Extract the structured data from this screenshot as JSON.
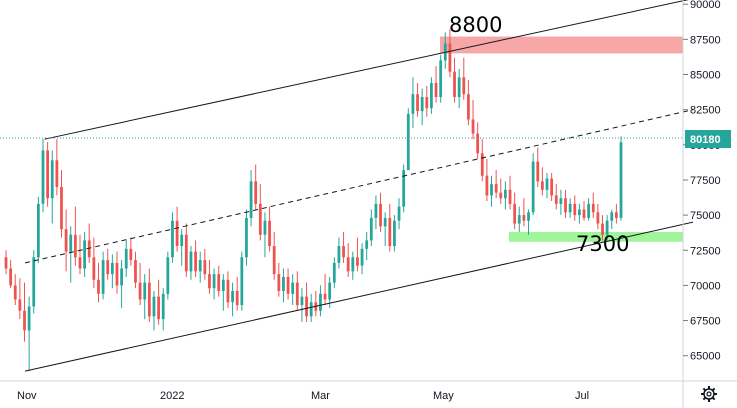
{
  "chart_data": {
    "type": "candlestick",
    "y_axis": {
      "ticks": [
        "65000",
        "67500",
        "70000",
        "72500",
        "75000",
        "77500",
        "80000",
        "82500",
        "85000",
        "87500",
        "90000"
      ],
      "ylim": [
        63200,
        90300
      ]
    },
    "x_axis": {
      "ticks": [
        "Nov",
        "2022",
        "Mar",
        "May",
        "Jul"
      ]
    },
    "last_price": "80180",
    "annotations": [
      "8800",
      "7300"
    ],
    "zones": [
      {
        "kind": "resistance",
        "color": "#f7a7a7",
        "price_low": 86500,
        "price_high": 87700
      },
      {
        "kind": "support",
        "color": "#9ff59a",
        "price_low": 73100,
        "price_high": 73800
      }
    ],
    "channel_lines": [
      {
        "style": "solid",
        "from": [
          "2021-10-31",
          63900
        ],
        "to": [
          "2022-08-01",
          74500
        ]
      },
      {
        "style": "dashed",
        "from": [
          "2021-10-31",
          71600
        ],
        "to": [
          "2022-08-01",
          82500
        ]
      },
      {
        "style": "solid",
        "from": [
          "2021-11-08",
          80400
        ],
        "to": [
          "2022-08-01",
          90400
        ]
      }
    ],
    "series": [
      {
        "values": [
          [
            72000,
            72500,
            70800,
            71200
          ],
          [
            71200,
            71800,
            69800,
            70000
          ],
          [
            70000,
            70800,
            68600,
            69000
          ],
          [
            69000,
            70500,
            67600,
            68200
          ],
          [
            68200,
            70200,
            66000,
            66800
          ],
          [
            66800,
            69200,
            63900,
            68500
          ],
          [
            68500,
            72500,
            68000,
            72000
          ],
          [
            72000,
            76300,
            71600,
            75800
          ],
          [
            75800,
            80400,
            75200,
            79600
          ],
          [
            79600,
            80200,
            75600,
            76200
          ],
          [
            76200,
            79600,
            74400,
            78900
          ],
          [
            78900,
            80400,
            76400,
            77000
          ],
          [
            77000,
            78200,
            73400,
            74000
          ],
          [
            74000,
            75400,
            71000,
            72400
          ],
          [
            72400,
            74200,
            70200,
            73600
          ],
          [
            73600,
            75600,
            71400,
            72000
          ],
          [
            72000,
            73600,
            70800,
            71200
          ],
          [
            71200,
            73800,
            70600,
            73200
          ],
          [
            73200,
            74400,
            71600,
            72000
          ],
          [
            72000,
            73400,
            69800,
            70400
          ],
          [
            70400,
            71600,
            68800,
            69400
          ],
          [
            69400,
            72400,
            69000,
            71800
          ],
          [
            71800,
            72600,
            70400,
            70800
          ],
          [
            70800,
            72200,
            69800,
            71600
          ],
          [
            71600,
            72400,
            69400,
            70000
          ],
          [
            70000,
            71800,
            68400,
            71200
          ],
          [
            71200,
            73200,
            70600,
            72600
          ],
          [
            72600,
            73400,
            71400,
            71800
          ],
          [
            71800,
            72400,
            69800,
            70200
          ],
          [
            70200,
            71600,
            68600,
            69000
          ],
          [
            69000,
            70800,
            67600,
            70200
          ],
          [
            70200,
            71200,
            67400,
            67800
          ],
          [
            67800,
            69600,
            66800,
            69200
          ],
          [
            69200,
            70400,
            67200,
            67600
          ],
          [
            67600,
            69800,
            66800,
            69400
          ],
          [
            69400,
            72400,
            69000,
            72000
          ],
          [
            72000,
            75200,
            71600,
            74600
          ],
          [
            74600,
            75600,
            72400,
            72800
          ],
          [
            72800,
            74000,
            71400,
            73600
          ],
          [
            73600,
            74400,
            70600,
            71000
          ],
          [
            71000,
            72800,
            70400,
            72400
          ],
          [
            72400,
            73200,
            70600,
            71000
          ],
          [
            71000,
            72400,
            70200,
            71800
          ],
          [
            71800,
            72600,
            70400,
            70800
          ],
          [
            70800,
            71800,
            69400,
            69800
          ],
          [
            69800,
            71200,
            69000,
            70800
          ],
          [
            70800,
            71400,
            69200,
            69600
          ],
          [
            69600,
            70800,
            68200,
            70400
          ],
          [
            70400,
            71000,
            68400,
            68800
          ],
          [
            68800,
            70200,
            67800,
            69600
          ],
          [
            69600,
            70600,
            68200,
            68600
          ],
          [
            68600,
            72400,
            68200,
            72000
          ],
          [
            72000,
            75400,
            71400,
            74800
          ],
          [
            74800,
            78200,
            74200,
            77400
          ],
          [
            77400,
            78600,
            75400,
            75800
          ],
          [
            75800,
            77200,
            73200,
            73600
          ],
          [
            73600,
            75200,
            72000,
            74600
          ],
          [
            74600,
            75600,
            72400,
            72800
          ],
          [
            72800,
            73800,
            70400,
            70800
          ],
          [
            70800,
            71600,
            69200,
            69600
          ],
          [
            69600,
            71200,
            68800,
            70600
          ],
          [
            70600,
            71200,
            69000,
            69400
          ],
          [
            69400,
            70800,
            68600,
            70200
          ],
          [
            70200,
            71000,
            68200,
            68600
          ],
          [
            68600,
            69800,
            67400,
            69200
          ],
          [
            69200,
            70200,
            67400,
            67800
          ],
          [
            67800,
            69400,
            67400,
            68800
          ],
          [
            68800,
            69600,
            67800,
            68200
          ],
          [
            68200,
            70000,
            67800,
            69400
          ],
          [
            69400,
            70800,
            68600,
            69000
          ],
          [
            69000,
            70600,
            68400,
            70200
          ],
          [
            70200,
            72000,
            69800,
            71600
          ],
          [
            71600,
            73400,
            71200,
            72800
          ],
          [
            72800,
            73800,
            71600,
            72000
          ],
          [
            72000,
            73000,
            70600,
            71000
          ],
          [
            71000,
            72400,
            70400,
            72000
          ],
          [
            72000,
            73400,
            71000,
            71400
          ],
          [
            71400,
            73000,
            70800,
            72600
          ],
          [
            72600,
            73800,
            71800,
            73200
          ],
          [
            73200,
            75400,
            72800,
            74800
          ],
          [
            74800,
            76400,
            74000,
            75800
          ],
          [
            75800,
            76600,
            73800,
            74200
          ],
          [
            74200,
            75200,
            72800,
            74800
          ],
          [
            74800,
            75800,
            72400,
            72800
          ],
          [
            72800,
            75000,
            72400,
            74600
          ],
          [
            74600,
            76200,
            74000,
            75600
          ],
          [
            75600,
            78600,
            75200,
            78200
          ],
          [
            78200,
            82600,
            80000,
            82200
          ],
          [
            82200,
            84800,
            81200,
            83600
          ],
          [
            83600,
            84400,
            82000,
            82400
          ],
          [
            82400,
            84000,
            81400,
            83400
          ],
          [
            83400,
            84200,
            82000,
            82600
          ],
          [
            82600,
            84800,
            82200,
            84400
          ],
          [
            84400,
            85600,
            83000,
            83400
          ],
          [
            83400,
            86400,
            83000,
            86000
          ],
          [
            86000,
            88000,
            85400,
            87200
          ],
          [
            87200,
            88200,
            84800,
            85200
          ],
          [
            85200,
            86200,
            83000,
            83400
          ],
          [
            83400,
            85400,
            82600,
            84800
          ],
          [
            84800,
            86200,
            83200,
            83600
          ],
          [
            83600,
            84600,
            81400,
            81800
          ],
          [
            81800,
            83200,
            80400,
            80800
          ],
          [
            80800,
            81600,
            79000,
            79400
          ],
          [
            79400,
            80400,
            77400,
            77800
          ],
          [
            77800,
            79000,
            76000,
            76400
          ],
          [
            76400,
            77800,
            75600,
            77200
          ],
          [
            77200,
            78200,
            76200,
            76600
          ],
          [
            76600,
            77600,
            75800,
            76200
          ],
          [
            76200,
            77400,
            75400,
            76800
          ],
          [
            76800,
            77800,
            75400,
            75800
          ],
          [
            75800,
            76600,
            74000,
            74400
          ],
          [
            74400,
            75600,
            73800,
            75000
          ],
          [
            75000,
            76200,
            74200,
            74600
          ],
          [
            74600,
            75400,
            73600,
            75200
          ],
          [
            75200,
            79400,
            75000,
            78800
          ],
          [
            78800,
            79800,
            77000,
            77400
          ],
          [
            77400,
            78400,
            76400,
            76800
          ],
          [
            76800,
            78000,
            76200,
            77600
          ],
          [
            77600,
            78000,
            76000,
            76400
          ],
          [
            76400,
            77200,
            75400,
            75800
          ],
          [
            75800,
            76800,
            75000,
            76200
          ],
          [
            76200,
            76800,
            74800,
            75200
          ],
          [
            75200,
            76200,
            74800,
            75800
          ],
          [
            75800,
            76400,
            74600,
            75000
          ],
          [
            75000,
            75800,
            74400,
            75400
          ],
          [
            75400,
            76000,
            74600,
            74800
          ],
          [
            74800,
            76200,
            74600,
            75800
          ],
          [
            75800,
            76600,
            74800,
            75200
          ],
          [
            75200,
            75800,
            74000,
            74400
          ],
          [
            74400,
            75000,
            73200,
            73600
          ],
          [
            73600,
            75000,
            73200,
            74600
          ],
          [
            74600,
            75400,
            74000,
            75200
          ],
          [
            75200,
            75800,
            74400,
            74800
          ],
          [
            74800,
            80600,
            74600,
            80180
          ]
        ]
      }
    ]
  }
}
